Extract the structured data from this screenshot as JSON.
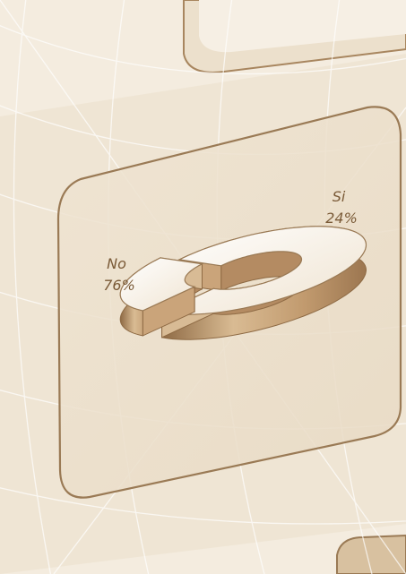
{
  "chart_data": {
    "type": "pie",
    "style": "3d-exploded-ring",
    "categories": [
      "No",
      "Si"
    ],
    "values": [
      76,
      24
    ],
    "data_labels": [
      "76%",
      "24%"
    ],
    "title": "",
    "legend": "none"
  },
  "colors": {
    "background": "#f4ecdf",
    "panel": "#eee2cf",
    "panel_border": "#9a7a55",
    "grid": "#ffffff",
    "slice_top": "#fbf7f0",
    "slice_side": "#c9a67e",
    "slice_shadow": "#8e6a44",
    "label": "#7a5a37"
  }
}
